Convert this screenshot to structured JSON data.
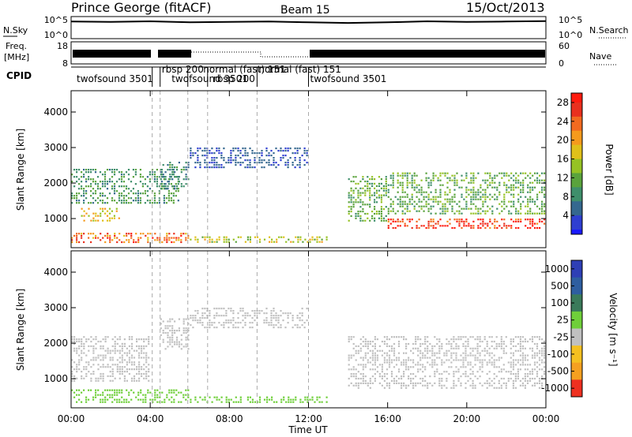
{
  "title": {
    "station": "Prince George (fitACF)",
    "beam": "Beam 15",
    "date": "15/Oct/2013"
  },
  "panels": {
    "nsky": {
      "label": "N.Sky",
      "ticks": [
        "10^5",
        "10^0"
      ],
      "right_label": "N.Search",
      "right_ticks": [
        "10^5",
        "10^0"
      ]
    },
    "freq": {
      "label_top": "Freq.",
      "label_bottom": "[MHz]",
      "ticks": [
        "18",
        "8"
      ],
      "right_label": "Nave",
      "right_ticks": [
        "60",
        "0"
      ]
    },
    "cpid": {
      "label": "CPID",
      "programs": [
        {
          "name": "twofsound 3501",
          "start": 0.2
        },
        {
          "name": "rbsp 200",
          "start": 4.5
        },
        {
          "name": "twofsound 3501",
          "start": 5.0
        },
        {
          "name": "normal (fast) 151",
          "start": 6.6
        },
        {
          "name": "rbsp 200",
          "start": 7.1
        },
        {
          "name": "normal (fast) 151",
          "start": 9.4
        },
        {
          "name": "twofsound 3501",
          "start": 12.0
        }
      ],
      "boundaries": [
        4.1,
        4.5,
        5.9,
        6.9,
        9.4,
        12.0
      ]
    }
  },
  "xaxis": {
    "label": "Time UT",
    "ticks": [
      "00:00",
      "04:00",
      "08:00",
      "12:00",
      "16:00",
      "20:00",
      "00:00"
    ]
  },
  "power_colorbar": {
    "label": "Power [dB]",
    "ticks": [
      "28",
      "24",
      "20",
      "16",
      "12",
      "8",
      "4"
    ]
  },
  "velocity_colorbar": {
    "label": "Velocity [m s⁻¹]",
    "ticks": [
      "1000",
      "500",
      "100",
      "25",
      "-25",
      "-100",
      "-500",
      "-1000"
    ]
  },
  "chart_data": [
    {
      "type": "line",
      "panel": "N.Sky / N.Search",
      "x": [
        0,
        2,
        4,
        6,
        8,
        10,
        12,
        14,
        16,
        18,
        20,
        22,
        24
      ],
      "series": [
        {
          "values": [
            50000,
            40000,
            60000,
            30000,
            40000,
            50000,
            30000,
            20000,
            30000,
            60000,
            40000,
            50000,
            70000
          ]
        }
      ],
      "ylog": true
    },
    {
      "type": "heatmap",
      "panel": "Power",
      "xlabel": "Time UT",
      "ylabel": "Slant Range [km]",
      "xlim": [
        0,
        24
      ],
      "ylim": [
        180,
        4600
      ],
      "yticks": [
        1000,
        2000,
        3000,
        4000
      ],
      "colorbar": {
        "label": "Power [dB]",
        "range": [
          0,
          30
        ],
        "ticks": [
          4,
          8,
          12,
          16,
          20,
          24,
          28
        ]
      },
      "features": [
        {
          "t0": 0.0,
          "t1": 6.0,
          "r0": 300,
          "r1": 600,
          "value": 24
        },
        {
          "t0": 0.5,
          "t1": 2.5,
          "r0": 900,
          "r1": 1300,
          "value": 18
        },
        {
          "t0": 0.0,
          "t1": 5.5,
          "r0": 1400,
          "r1": 2400,
          "value": 10
        },
        {
          "t0": 4.5,
          "t1": 6.0,
          "r0": 1800,
          "r1": 2600,
          "value": 8
        },
        {
          "t0": 6.0,
          "t1": 12.0,
          "r0": 2400,
          "r1": 3000,
          "value": 5
        },
        {
          "t0": 6.0,
          "t1": 13.0,
          "r0": 300,
          "r1": 500,
          "value": 16
        },
        {
          "t0": 14.0,
          "t1": 16.0,
          "r0": 900,
          "r1": 2200,
          "value": 12
        },
        {
          "t0": 16.0,
          "t1": 24.0,
          "r0": 1100,
          "r1": 2300,
          "value": 12
        },
        {
          "t0": 16.0,
          "t1": 24.0,
          "r0": 700,
          "r1": 1000,
          "value": 28
        }
      ]
    },
    {
      "type": "heatmap",
      "panel": "Velocity",
      "xlabel": "Time UT",
      "ylabel": "Slant Range [km]",
      "xlim": [
        0,
        24
      ],
      "ylim": [
        180,
        4600
      ],
      "yticks": [
        1000,
        2000,
        3000,
        4000
      ],
      "colorbar": {
        "label": "Velocity [m s⁻¹]",
        "ticks": [
          1000,
          500,
          100,
          25,
          -25,
          -100,
          -500,
          -1000
        ]
      },
      "features": [
        {
          "t0": 0.0,
          "t1": 6.0,
          "r0": 300,
          "r1": 700,
          "value": 150
        },
        {
          "t0": 0.0,
          "t1": 4.0,
          "r0": 900,
          "r1": 2200,
          "value": 0
        },
        {
          "t0": 4.5,
          "t1": 6.0,
          "r0": 1800,
          "r1": 2700,
          "value": 0
        },
        {
          "t0": 6.0,
          "t1": 12.0,
          "r0": 2400,
          "r1": 3000,
          "value": 0
        },
        {
          "t0": 6.0,
          "t1": 13.0,
          "r0": 300,
          "r1": 500,
          "value": 150
        },
        {
          "t0": 14.0,
          "t1": 24.0,
          "r0": 700,
          "r1": 2200,
          "value": 0
        }
      ]
    }
  ]
}
